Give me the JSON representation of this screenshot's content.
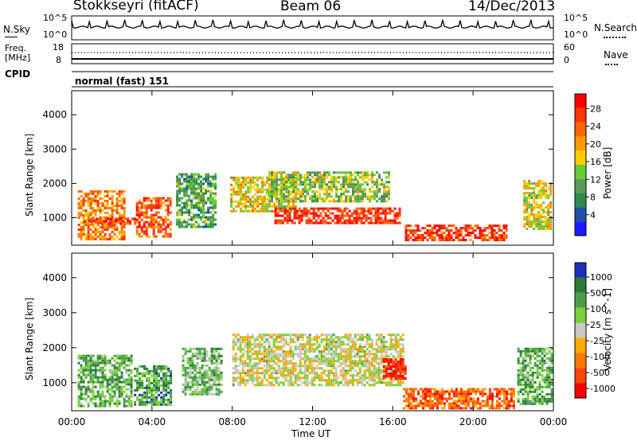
{
  "header": {
    "station": "Stokkseyri (fitACF)",
    "beam": "Beam 06",
    "date": "14/Dec/2013"
  },
  "noise_panel": {
    "left_label": "N.Sky",
    "left_ticks": [
      "10^5",
      "10^0"
    ],
    "right_ticks": [
      "10^5",
      "10^0"
    ],
    "right_label": "N.Search"
  },
  "freq_panel": {
    "left_label_1": "Freq.",
    "left_label_2": "[MHz]",
    "left_ticks": [
      "18",
      "8"
    ],
    "right_ticks": [
      "60",
      "0"
    ],
    "right_label": "Nave",
    "cpid_label": "CPID",
    "cpid_value": "normal (fast) 151"
  },
  "chart_data": [
    {
      "type": "heatmap",
      "name": "power",
      "xlabel": "",
      "ylabel": "Slant Range [km]",
      "x_ticks": [
        "00:00",
        "04:00",
        "08:00",
        "12:00",
        "16:00",
        "20:00",
        "00:00"
      ],
      "y_ticks": [
        "1000",
        "2000",
        "3000",
        "4000"
      ],
      "ylim": [
        200,
        4700
      ],
      "xlim_hours": [
        0,
        24
      ],
      "colorbar": {
        "label": "Power [dB]",
        "ticks": [
          "4",
          "8",
          "12",
          "16",
          "20",
          "24",
          "28"
        ],
        "colors": [
          "#1b1bff",
          "#1f4fa8",
          "#2e8c4c",
          "#5a9a5a",
          "#66cc33",
          "#ffcc00",
          "#ff9900",
          "#ff6600",
          "#ff3300",
          "#ff0000"
        ]
      },
      "regions": [
        {
          "t0": 0.3,
          "t1": 2.6,
          "r0": 350,
          "r1": 1800,
          "level": 0.72
        },
        {
          "t0": 0.6,
          "t1": 3.1,
          "r0": 800,
          "r1": 1000,
          "level": 0.85
        },
        {
          "t0": 3.2,
          "t1": 4.9,
          "r0": 450,
          "r1": 1600,
          "level": 0.8
        },
        {
          "t0": 5.2,
          "t1": 7.2,
          "r0": 700,
          "r1": 2300,
          "level": 0.35
        },
        {
          "t0": 7.9,
          "t1": 11.2,
          "r0": 1200,
          "r1": 2200,
          "level": 0.55
        },
        {
          "t0": 9.8,
          "t1": 15.8,
          "r0": 1500,
          "r1": 2350,
          "level": 0.45
        },
        {
          "t0": 10.1,
          "t1": 16.4,
          "r0": 850,
          "r1": 1300,
          "level": 0.88
        },
        {
          "t0": 16.6,
          "t1": 21.6,
          "r0": 350,
          "r1": 800,
          "level": 0.86
        },
        {
          "t0": 22.5,
          "t1": 23.9,
          "r0": 700,
          "r1": 2100,
          "level": 0.55
        }
      ]
    },
    {
      "type": "heatmap",
      "name": "velocity",
      "xlabel": "Time UT",
      "ylabel": "Slant Range [km]",
      "x_ticks": [
        "00:00",
        "04:00",
        "08:00",
        "12:00",
        "16:00",
        "20:00",
        "00:00"
      ],
      "y_ticks": [
        "1000",
        "2000",
        "3000",
        "4000"
      ],
      "ylim": [
        200,
        4700
      ],
      "xlim_hours": [
        0,
        24
      ],
      "colorbar": {
        "label": "Velocity [m s^-1]",
        "ticks": [
          "1000",
          "500",
          "100",
          "25",
          "-25",
          "-100",
          "-500",
          "-1000"
        ],
        "colors": [
          "#1b2fbf",
          "#2a7a3a",
          "#4aa04a",
          "#7ad03a",
          "#c8c8c8",
          "#ffaa00",
          "#ff7700",
          "#ff4400",
          "#ff0000"
        ]
      },
      "regions": [
        {
          "t0": 0.3,
          "t1": 3.0,
          "r0": 350,
          "r1": 1800,
          "level": 0.3
        },
        {
          "t0": 3.1,
          "t1": 5.0,
          "r0": 400,
          "r1": 1500,
          "level": 0.25
        },
        {
          "t0": 5.5,
          "t1": 7.5,
          "r0": 700,
          "r1": 2000,
          "level": 0.35
        },
        {
          "t0": 8.0,
          "t1": 16.5,
          "r0": 900,
          "r1": 2400,
          "level": 0.5
        },
        {
          "t0": 15.5,
          "t1": 16.6,
          "r0": 1100,
          "r1": 1700,
          "level": 0.95
        },
        {
          "t0": 16.5,
          "t1": 22.0,
          "r0": 300,
          "r1": 850,
          "level": 0.78
        },
        {
          "t0": 22.2,
          "t1": 23.9,
          "r0": 400,
          "r1": 2000,
          "level": 0.3
        }
      ]
    }
  ]
}
